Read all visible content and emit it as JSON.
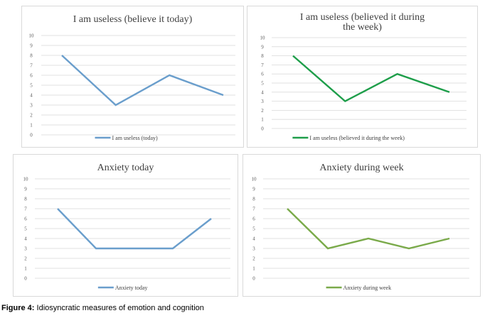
{
  "caption": {
    "label": "Figure 4:",
    "text": "Idiosyncratic measures of emotion and cognition"
  },
  "chart_data": [
    {
      "type": "line",
      "title": [
        "I am useless (believe it today)"
      ],
      "y_ticks": [
        "10",
        "9",
        "8",
        "7",
        "6",
        "5",
        "4",
        "3",
        "2",
        "1",
        "0"
      ],
      "ylim": [
        0,
        10
      ],
      "grid": true,
      "legend_position": "bottom",
      "series": [
        {
          "name": "I am useless (today)",
          "color": "#6a9ecc",
          "values": [
            8,
            3,
            6,
            4
          ]
        }
      ]
    },
    {
      "type": "line",
      "title": [
        "I am useless (believed it during",
        "the week)"
      ],
      "y_ticks": [
        "10",
        "9",
        "8",
        "7",
        "6",
        "5",
        "4",
        "3",
        "2",
        "1",
        "0"
      ],
      "ylim": [
        0,
        10
      ],
      "grid": true,
      "legend_position": "bottom",
      "series": [
        {
          "name": "I am useless (believed it during the week)",
          "color": "#1e9e4a",
          "values": [
            8,
            3,
            6,
            4
          ]
        }
      ]
    },
    {
      "type": "line",
      "title": [
        "Anxiety today"
      ],
      "y_ticks": [
        "10",
        "9",
        "8",
        "7",
        "6",
        "5",
        "4",
        "3",
        "2",
        "1",
        "0"
      ],
      "ylim": [
        0,
        10
      ],
      "grid": true,
      "legend_position": "bottom",
      "series": [
        {
          "name": "Anxiety today",
          "color": "#6a9ecc",
          "values": [
            7,
            3,
            3,
            3,
            6
          ]
        }
      ]
    },
    {
      "type": "line",
      "title": [
        "Anxiety during week"
      ],
      "y_ticks": [
        "10",
        "9",
        "8",
        "7",
        "6",
        "5",
        "4",
        "3",
        "2",
        "1",
        "0"
      ],
      "ylim": [
        0,
        10
      ],
      "grid": true,
      "legend_position": "bottom",
      "series": [
        {
          "name": "Anxiety during week",
          "color": "#7aaa4a",
          "values": [
            7,
            3,
            4,
            3,
            4
          ]
        }
      ]
    }
  ]
}
